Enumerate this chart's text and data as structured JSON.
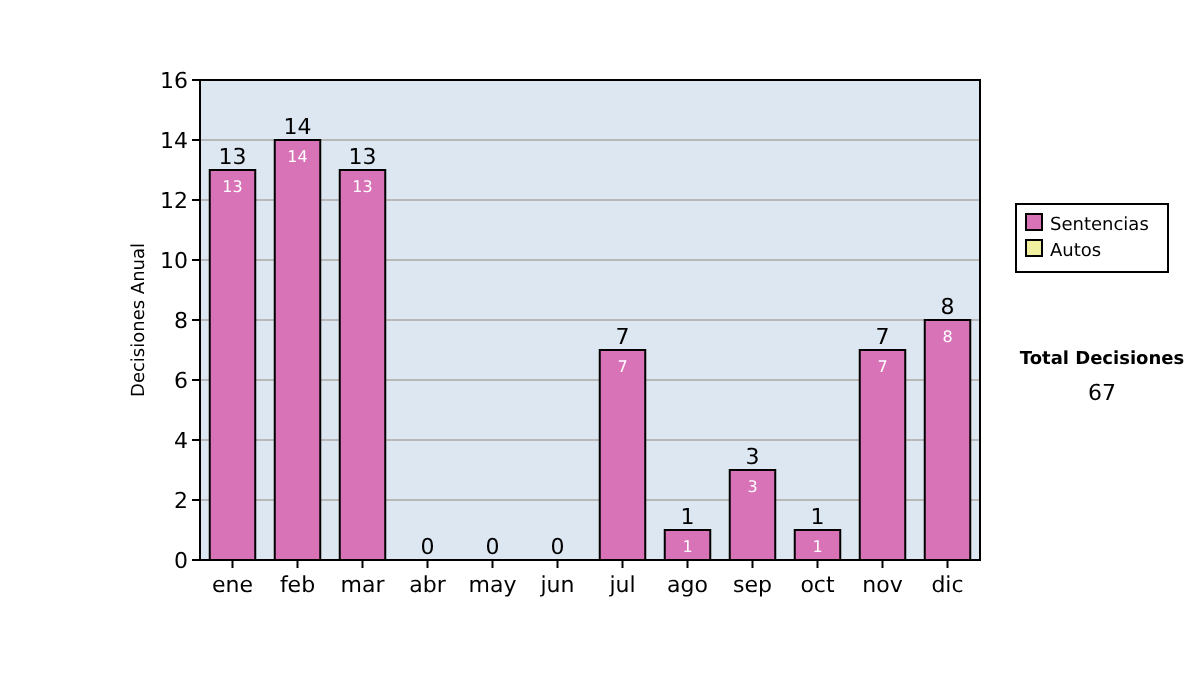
{
  "chart_data": {
    "type": "bar",
    "stacked": true,
    "ylabel": "Decisiones Anual",
    "categories": [
      "ene",
      "feb",
      "mar",
      "abr",
      "may",
      "jun",
      "jul",
      "ago",
      "sep",
      "oct",
      "nov",
      "dic"
    ],
    "series": [
      {
        "name": "Sentencias",
        "color": "#d873b8",
        "values": [
          13,
          14,
          13,
          0,
          0,
          0,
          7,
          1,
          3,
          1,
          7,
          8
        ],
        "value_labels": [
          "13",
          "14",
          "13",
          null,
          null,
          null,
          "7",
          "1",
          "3",
          "1",
          "7",
          "8"
        ]
      },
      {
        "name": "Autos",
        "color": "#f0f0a0",
        "values": [
          0,
          0,
          0,
          0,
          0,
          0,
          0,
          0,
          0,
          0,
          0,
          0
        ]
      }
    ],
    "totals": [
      "13",
      "14",
      "13",
      "0",
      "0",
      "0",
      "7",
      "1",
      "3",
      "1",
      "7",
      "8"
    ],
    "ylim": [
      0,
      16
    ],
    "yticks": [
      0,
      2,
      4,
      6,
      8,
      10,
      12,
      14,
      16
    ],
    "grid": "y",
    "legend": "right",
    "annotations": [
      "Total Decisiones",
      "67"
    ]
  }
}
